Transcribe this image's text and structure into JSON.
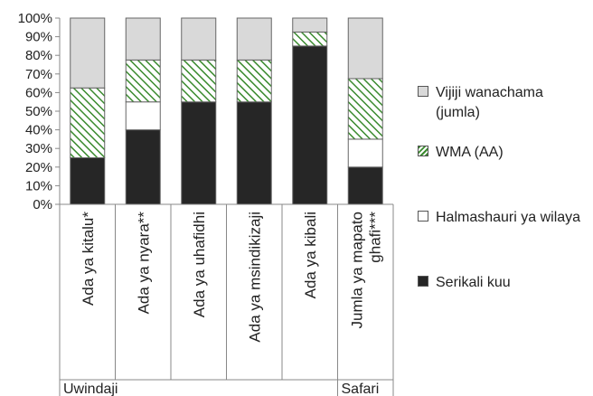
{
  "chart_data": {
    "type": "bar",
    "stacked": true,
    "percent": true,
    "title": "",
    "xlabel": "",
    "ylabel": "",
    "ylim": [
      0,
      100
    ],
    "y_ticks": [
      "0%",
      "10%",
      "20%",
      "30%",
      "40%",
      "50%",
      "60%",
      "70%",
      "80%",
      "90%",
      "100%"
    ],
    "categories": [
      "Ada ya kitalu*",
      "Ada ya nyara**",
      "Ada ya uhafidhi",
      "Ada ya msindikizaji",
      "Ada ya kibali",
      "Jumla ya mapato ghafi***"
    ],
    "groups": [
      {
        "label": "Uwindaji",
        "categories": [
          "Ada ya kitalu*",
          "Ada ya nyara**",
          "Ada ya uhafidhi",
          "Ada ya msindikizaji",
          "Ada ya kibali"
        ]
      },
      {
        "label": "Safari",
        "categories": [
          "Jumla ya mapato ghafi***"
        ]
      }
    ],
    "series": [
      {
        "name": "Serikali kuu",
        "values": [
          25,
          40,
          55,
          55,
          85,
          20
        ],
        "color": "#262626",
        "pattern": "solid"
      },
      {
        "name": "Halmashauri ya wilaya",
        "values": [
          0,
          15,
          0,
          0,
          0,
          15
        ],
        "color": "#ffffff",
        "pattern": "solid"
      },
      {
        "name": "WMA (AA)",
        "values": [
          37.5,
          22.5,
          22.5,
          22.5,
          7.5,
          32.5
        ],
        "color": "#3a8a2e",
        "pattern": "diagonal-hatch"
      },
      {
        "name": "Vijiji wanachama (jumla)",
        "values": [
          37.5,
          22.5,
          22.5,
          22.5,
          7.5,
          32.5
        ],
        "color": "#d9d9d9",
        "pattern": "solid"
      }
    ],
    "legend_position": "right",
    "grid": false
  },
  "legend": {
    "items": [
      {
        "label": "Vijiji wanachama (jumla)",
        "color": "#d9d9d9",
        "pattern": "solid"
      },
      {
        "label": "WMA (AA)",
        "color": "#3a8a2e",
        "pattern": "diagonal-hatch"
      },
      {
        "label": "Halmashauri ya wilaya",
        "color": "#ffffff",
        "pattern": "solid"
      },
      {
        "label": "Serikali kuu",
        "color": "#262626",
        "pattern": "solid"
      }
    ]
  }
}
